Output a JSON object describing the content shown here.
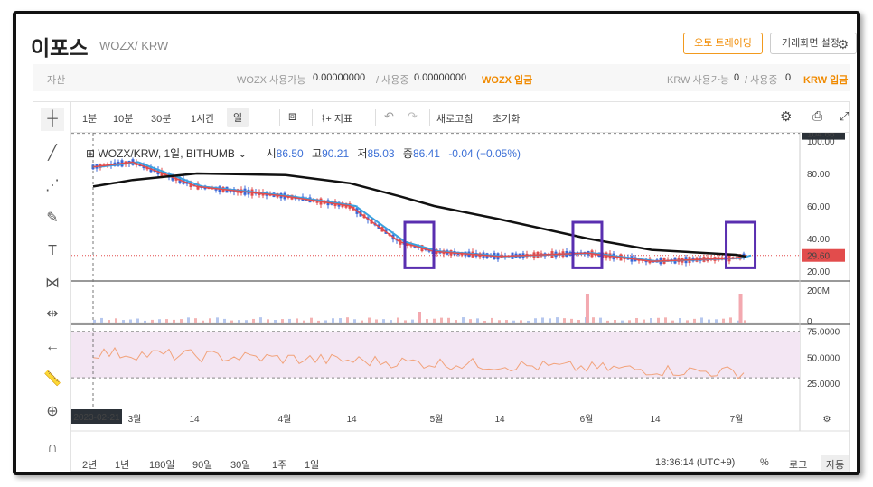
{
  "header": {
    "coin_name": "이포스",
    "pair": "WOZX/ KRW",
    "auto_trading_label": "오토 트레이딩",
    "screen_setting_label": "거래화면 설정"
  },
  "assets": {
    "title": "자산",
    "wozx_avail_label": "WOZX 사용가능",
    "wozx_avail_value": "0.00000000",
    "wozx_inuse_label": "/ 사용중",
    "wozx_inuse_value": "0.00000000",
    "wozx_deposit": "WOZX 입금",
    "krw_avail_label": "KRW 사용가능",
    "krw_avail_value": "0",
    "krw_inuse_label": "/ 사용중",
    "krw_inuse_value": "0",
    "krw_deposit": "KRW 입금"
  },
  "toolbar": {
    "intervals": [
      "1분",
      "10분",
      "30분",
      "1시간",
      "일"
    ],
    "selected_interval": "일",
    "indicator_label": "지표",
    "refresh_label": "새로고침",
    "reset_label": "초기화"
  },
  "legend": {
    "symbol": "WOZX/KRW, 1일, BITHUMB",
    "open_label": "시",
    "open": "86.50",
    "high_label": "고",
    "high": "90.21",
    "low_label": "저",
    "low": "85.03",
    "close_label": "종",
    "close": "86.41",
    "change": "-0.04 (−0.05%)"
  },
  "price_axis": {
    "ticks": [
      "100.00",
      "80.00",
      "60.00",
      "40.00",
      "20.00"
    ],
    "top_badge": "104.66",
    "last_badge": "29.60"
  },
  "volume_axis": {
    "ticks": [
      "200M",
      "0"
    ]
  },
  "rsi_axis": {
    "ticks": [
      "75.0000",
      "50.0000",
      "25.0000"
    ]
  },
  "time_axis": {
    "labels": [
      "3월",
      "14",
      "4월",
      "14",
      "5월",
      "14",
      "6월",
      "14",
      "7월"
    ],
    "cursor_date": "2023-02-21"
  },
  "bottom": {
    "ranges": [
      "2년",
      "1년",
      "180일",
      "90일",
      "30일",
      "1주",
      "1일"
    ],
    "time": "18:36:14 (UTC+9)",
    "percent": "%",
    "log": "로그",
    "auto": "자동"
  },
  "colors": {
    "up": "#e24c4c",
    "down": "#3a67d8",
    "ma_fast": "#e24c4c",
    "ma_mid": "#3aa1e0",
    "ma_slow": "#111111",
    "highlight_box": "#5a2fb0",
    "rsi_band": "#f3e6f3",
    "accent": "#f08a00"
  },
  "chart_data": {
    "type": "line",
    "x": [
      "2023-02-21",
      "2023-03-01",
      "2023-03-14",
      "2023-04-01",
      "2023-04-14",
      "2023-04-24",
      "2023-05-01",
      "2023-05-14",
      "2023-06-01",
      "2023-06-14",
      "2023-07-01",
      "2023-07-03"
    ],
    "series": [
      {
        "values": [
          84,
          87,
          72,
          66,
          60,
          38,
          32,
          29,
          31,
          26,
          28,
          29.6
        ]
      },
      {
        "values": [
          72,
          76,
          80,
          79,
          74,
          66,
          60,
          52,
          40,
          33,
          30,
          29
        ]
      }
    ],
    "ylim": [
      15,
      105
    ],
    "highlighted_regions": [
      "2023-04-28",
      "2023-06-01",
      "2023-07-02"
    ]
  }
}
